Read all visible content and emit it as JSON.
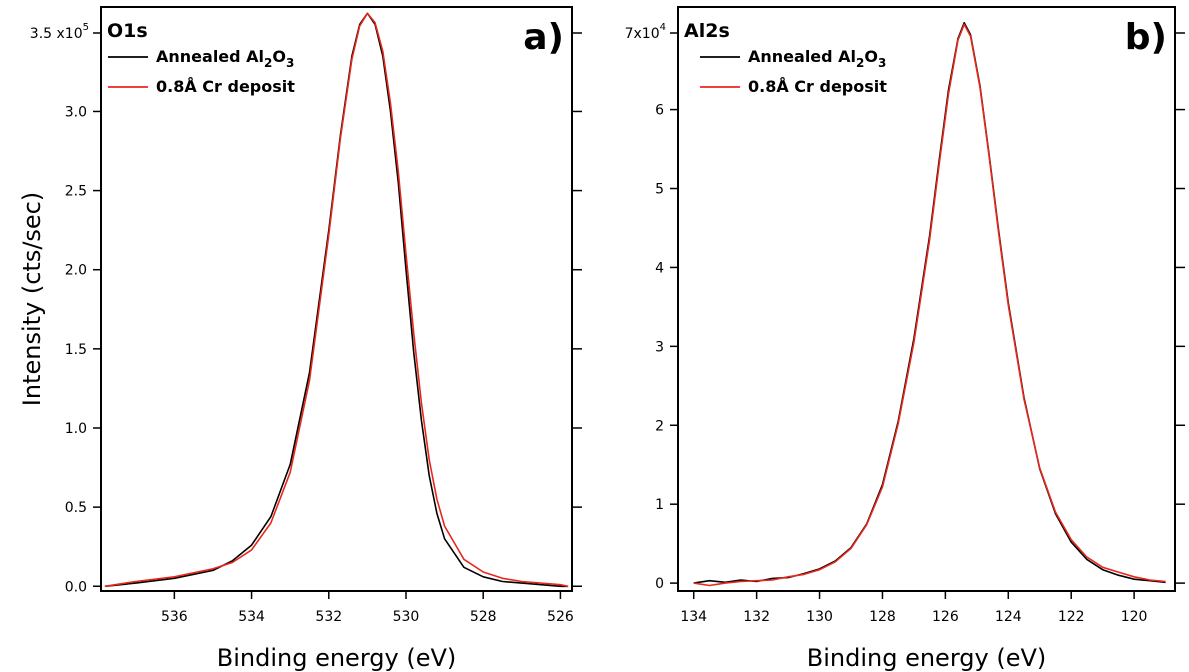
{
  "chart_data": [
    {
      "type": "line",
      "panel_label": "a)",
      "title": "O1s",
      "xlabel": "Binding energy (eV)",
      "ylabel": "Intensity (cts/sec)",
      "x_reversed": true,
      "xlim": [
        537.9,
        525.7
      ],
      "ylim": [
        -0.03,
        3.66
      ],
      "y_multiplier_label": "x10",
      "y_multiplier_exp": "5",
      "y_top_label_value": "3.5",
      "xticks": [
        536,
        534,
        532,
        530,
        528,
        526
      ],
      "yticks": [
        {
          "value": 0.0,
          "label": "0.0"
        },
        {
          "value": 0.5,
          "label": "0.5"
        },
        {
          "value": 1.0,
          "label": "1.0"
        },
        {
          "value": 1.5,
          "label": "1.5"
        },
        {
          "value": 2.0,
          "label": "2.0"
        },
        {
          "value": 2.5,
          "label": "2.5"
        },
        {
          "value": 3.0,
          "label": "3.0"
        }
      ],
      "series": [
        {
          "name": "Annealed Al2O3",
          "name_parts": {
            "base": "Annealed Al",
            "sub1": "2",
            "mid": "O",
            "sub2": "3"
          },
          "color": "#000000",
          "x": [
            537.8,
            537.0,
            536.0,
            535.0,
            534.5,
            534.0,
            533.5,
            533.0,
            532.5,
            532.0,
            531.7,
            531.4,
            531.2,
            531.0,
            530.8,
            530.6,
            530.4,
            530.2,
            530.0,
            529.8,
            529.6,
            529.4,
            529.2,
            529.0,
            528.5,
            528.0,
            527.5,
            527.0,
            526.0,
            525.8
          ],
          "y": [
            0.0,
            0.02,
            0.05,
            0.1,
            0.16,
            0.26,
            0.44,
            0.77,
            1.35,
            2.25,
            2.85,
            3.35,
            3.55,
            3.62,
            3.55,
            3.35,
            3.0,
            2.55,
            2.0,
            1.48,
            1.05,
            0.7,
            0.46,
            0.3,
            0.12,
            0.06,
            0.03,
            0.02,
            0.0,
            0.0
          ]
        },
        {
          "name": "0.8Å Cr deposit",
          "color": "#e8281c",
          "x": [
            537.8,
            537.0,
            536.0,
            535.0,
            534.5,
            534.0,
            533.5,
            533.0,
            532.5,
            532.0,
            531.7,
            531.4,
            531.2,
            531.0,
            530.8,
            530.6,
            530.4,
            530.2,
            530.0,
            529.8,
            529.6,
            529.4,
            529.2,
            529.0,
            528.5,
            528.0,
            527.5,
            527.0,
            526.0,
            525.8
          ],
          "y": [
            0.0,
            0.03,
            0.06,
            0.11,
            0.15,
            0.23,
            0.4,
            0.72,
            1.3,
            2.22,
            2.83,
            3.33,
            3.54,
            3.62,
            3.56,
            3.38,
            3.05,
            2.62,
            2.1,
            1.6,
            1.16,
            0.8,
            0.55,
            0.38,
            0.17,
            0.09,
            0.05,
            0.03,
            0.01,
            0.0
          ]
        }
      ]
    },
    {
      "type": "line",
      "panel_label": "b)",
      "title": "Al2s",
      "xlabel": "Binding energy (eV)",
      "ylabel": "",
      "x_reversed": true,
      "xlim": [
        134.5,
        118.7
      ],
      "ylim": [
        -0.1,
        7.3
      ],
      "y_multiplier_label": "x10",
      "y_multiplier_exp": "4",
      "y_top_label_value": "7",
      "xticks": [
        134,
        132,
        130,
        128,
        126,
        124,
        122,
        120
      ],
      "yticks": [
        {
          "value": 0,
          "label": "0"
        },
        {
          "value": 1,
          "label": "1"
        },
        {
          "value": 2,
          "label": "2"
        },
        {
          "value": 3,
          "label": "3"
        },
        {
          "value": 4,
          "label": "4"
        },
        {
          "value": 5,
          "label": "5"
        },
        {
          "value": 6,
          "label": "6"
        }
      ],
      "series": [
        {
          "name": "Annealed Al2O3",
          "name_parts": {
            "base": "Annealed Al",
            "sub1": "2",
            "mid": "O",
            "sub2": "3"
          },
          "color": "#000000",
          "x": [
            134.0,
            133.5,
            133.0,
            132.5,
            132.0,
            131.5,
            131.0,
            130.5,
            130.0,
            129.5,
            129.0,
            128.5,
            128.0,
            127.5,
            127.0,
            126.5,
            126.2,
            125.9,
            125.6,
            125.4,
            125.2,
            124.9,
            124.6,
            124.3,
            124.0,
            123.5,
            123.0,
            122.5,
            122.0,
            121.5,
            121.0,
            120.5,
            120.0,
            119.5,
            119.0
          ],
          "y": [
            0.0,
            0.03,
            0.01,
            0.04,
            0.02,
            0.06,
            0.07,
            0.12,
            0.18,
            0.28,
            0.45,
            0.75,
            1.25,
            2.05,
            3.1,
            4.4,
            5.35,
            6.25,
            6.9,
            7.1,
            6.95,
            6.3,
            5.4,
            4.45,
            3.55,
            2.35,
            1.45,
            0.88,
            0.52,
            0.3,
            0.17,
            0.1,
            0.05,
            0.03,
            0.01
          ]
        },
        {
          "name": "0.8Å Cr deposit",
          "color": "#e8281c",
          "x": [
            134.0,
            133.5,
            133.0,
            132.5,
            132.0,
            131.5,
            131.0,
            130.5,
            130.0,
            129.5,
            129.0,
            128.5,
            128.0,
            127.5,
            127.0,
            126.5,
            126.2,
            125.9,
            125.6,
            125.4,
            125.2,
            124.9,
            124.6,
            124.3,
            124.0,
            123.5,
            123.0,
            122.5,
            122.0,
            121.5,
            121.0,
            120.5,
            120.0,
            119.5,
            119.0
          ],
          "y": [
            0.0,
            -0.03,
            0.0,
            0.02,
            0.03,
            0.04,
            0.08,
            0.11,
            0.17,
            0.27,
            0.44,
            0.74,
            1.22,
            2.02,
            3.05,
            4.35,
            5.3,
            6.2,
            6.88,
            7.08,
            6.93,
            6.28,
            5.38,
            4.42,
            3.52,
            2.33,
            1.46,
            0.9,
            0.55,
            0.33,
            0.2,
            0.14,
            0.08,
            0.04,
            0.02
          ]
        }
      ]
    }
  ]
}
